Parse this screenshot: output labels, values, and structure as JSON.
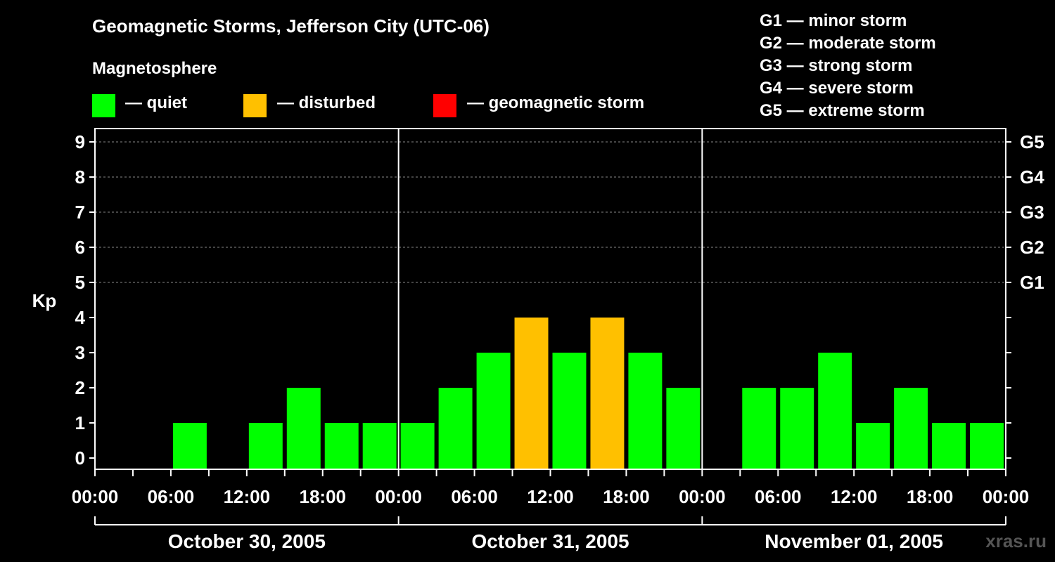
{
  "header": {
    "title": "Geomagnetic Storms, Jefferson City (UTC-06)",
    "magnetosphere_label": "Magnetosphere"
  },
  "legend": [
    {
      "label": "— quiet",
      "color": "#00ff00"
    },
    {
      "label": "— disturbed",
      "color": "#ffc000"
    },
    {
      "label": "— geomagnetic storm",
      "color": "#ff0000"
    }
  ],
  "g_scale": [
    "G1 — minor storm",
    "G2 — moderate storm",
    "G3 — strong storm",
    "G4 — severe storm",
    "G5 — extreme storm"
  ],
  "watermark": "xras.ru",
  "chart_data": {
    "type": "bar",
    "ylabel": "Kp",
    "ylim": [
      0,
      9
    ],
    "y_ticks": [
      "0",
      "1",
      "2",
      "3",
      "4",
      "5",
      "6",
      "7",
      "8",
      "9"
    ],
    "right_axis_labels": [
      {
        "kp": 5,
        "label": "G1"
      },
      {
        "kp": 6,
        "label": "G2"
      },
      {
        "kp": 7,
        "label": "G3"
      },
      {
        "kp": 8,
        "label": "G4"
      },
      {
        "kp": 9,
        "label": "G5"
      }
    ],
    "x_tick_labels": [
      "00:00",
      "06:00",
      "12:00",
      "18:00",
      "00:00",
      "06:00",
      "12:00",
      "18:00",
      "00:00",
      "06:00",
      "12:00",
      "18:00",
      "00:00"
    ],
    "days": [
      "October 30, 2005",
      "October 31, 2005",
      "November 01, 2005"
    ],
    "interval_hours": 3,
    "series": [
      {
        "values": [
          0,
          0,
          1,
          0,
          1,
          2,
          1,
          1,
          1,
          2,
          3,
          4,
          3,
          4,
          3,
          2,
          0,
          2,
          2,
          3,
          1,
          2,
          1,
          1
        ],
        "status": [
          "quiet",
          "quiet",
          "quiet",
          "quiet",
          "quiet",
          "quiet",
          "quiet",
          "quiet",
          "quiet",
          "quiet",
          "quiet",
          "disturbed",
          "quiet",
          "disturbed",
          "quiet",
          "quiet",
          "quiet",
          "quiet",
          "quiet",
          "quiet",
          "quiet",
          "quiet",
          "quiet",
          "quiet"
        ]
      }
    ],
    "status_colors": {
      "quiet": "#00ff00",
      "disturbed": "#ffc000",
      "storm": "#ff0000"
    },
    "grid": "dashed at Kp 5-9"
  }
}
